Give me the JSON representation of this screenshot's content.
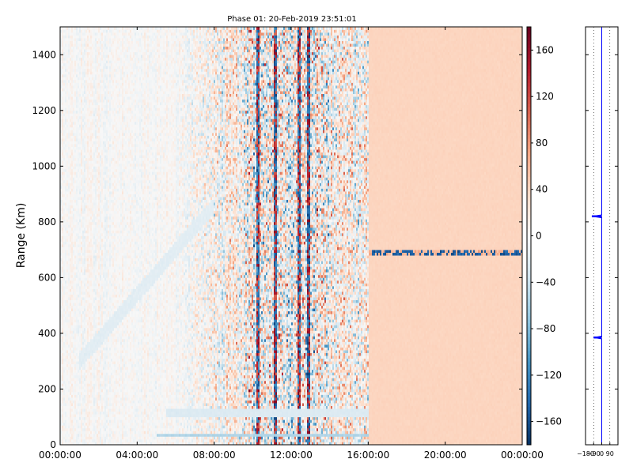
{
  "chart_data": [
    {
      "type": "heatmap",
      "title": "Phase 01: 20-Feb-2019 23:51:01",
      "ylabel": "Range (Km)",
      "xlabel": "",
      "x_tick_labels": [
        "00:00:00",
        "04:00:00",
        "08:00:00",
        "12:00:00",
        "16:00:00",
        "20:00:00",
        "00:00:00"
      ],
      "x_range_hours": [
        0,
        24
      ],
      "ylim": [
        0,
        1500
      ],
      "y_ticks": [
        0,
        200,
        400,
        600,
        800,
        1000,
        1200,
        1400
      ],
      "y_tick_labels": [
        "0",
        "200",
        "400",
        "600",
        "800",
        "1000",
        "1200",
        "1400"
      ],
      "colormap": "RdBu_r",
      "colorbar": {
        "range": [
          -180,
          180
        ],
        "ticks": [
          -160,
          -120,
          -80,
          -40,
          0,
          40,
          80,
          120,
          160
        ],
        "tick_labels": [
          "−160",
          "−120",
          "−80",
          "−40",
          "0",
          "40",
          "80",
          "120",
          "160"
        ]
      },
      "features": [
        {
          "description": "high-variance phase band",
          "x_hours": [
            8,
            16
          ],
          "y_km": [
            0,
            1500
          ]
        },
        {
          "description": "nearly uniform phase region",
          "x_hours": [
            16,
            24
          ],
          "y_km": [
            0,
            1500
          ],
          "value": 40
        },
        {
          "description": "horizontal band of mixed phase",
          "x_hours": [
            16,
            24
          ],
          "y_km": 690
        },
        {
          "description": "low-range near-zero band",
          "x_hours": [
            5.5,
            16
          ],
          "y_km": [
            100,
            130
          ]
        },
        {
          "description": "low-range near-zero band",
          "x_hours": [
            5,
            16
          ],
          "y_km": [
            30,
            45
          ]
        }
      ],
      "grid": false
    },
    {
      "type": "line",
      "title": "",
      "x_tick_labels": [
        "−180",
        "−90",
        "0",
        "90"
      ],
      "xlim": [
        -180,
        180
      ],
      "ylim": [
        0,
        1500
      ],
      "grid": true,
      "series_color": "#0000ff",
      "profile": [
        {
          "range_km": 0,
          "phase": 0
        },
        {
          "range_km": 380,
          "phase": 0
        },
        {
          "range_km": 385,
          "phase": -90
        },
        {
          "range_km": 390,
          "phase": 0
        },
        {
          "range_km": 815,
          "phase": 0
        },
        {
          "range_km": 820,
          "phase": -110
        },
        {
          "range_km": 825,
          "phase": 0
        },
        {
          "range_km": 1500,
          "phase": 0
        }
      ]
    }
  ]
}
